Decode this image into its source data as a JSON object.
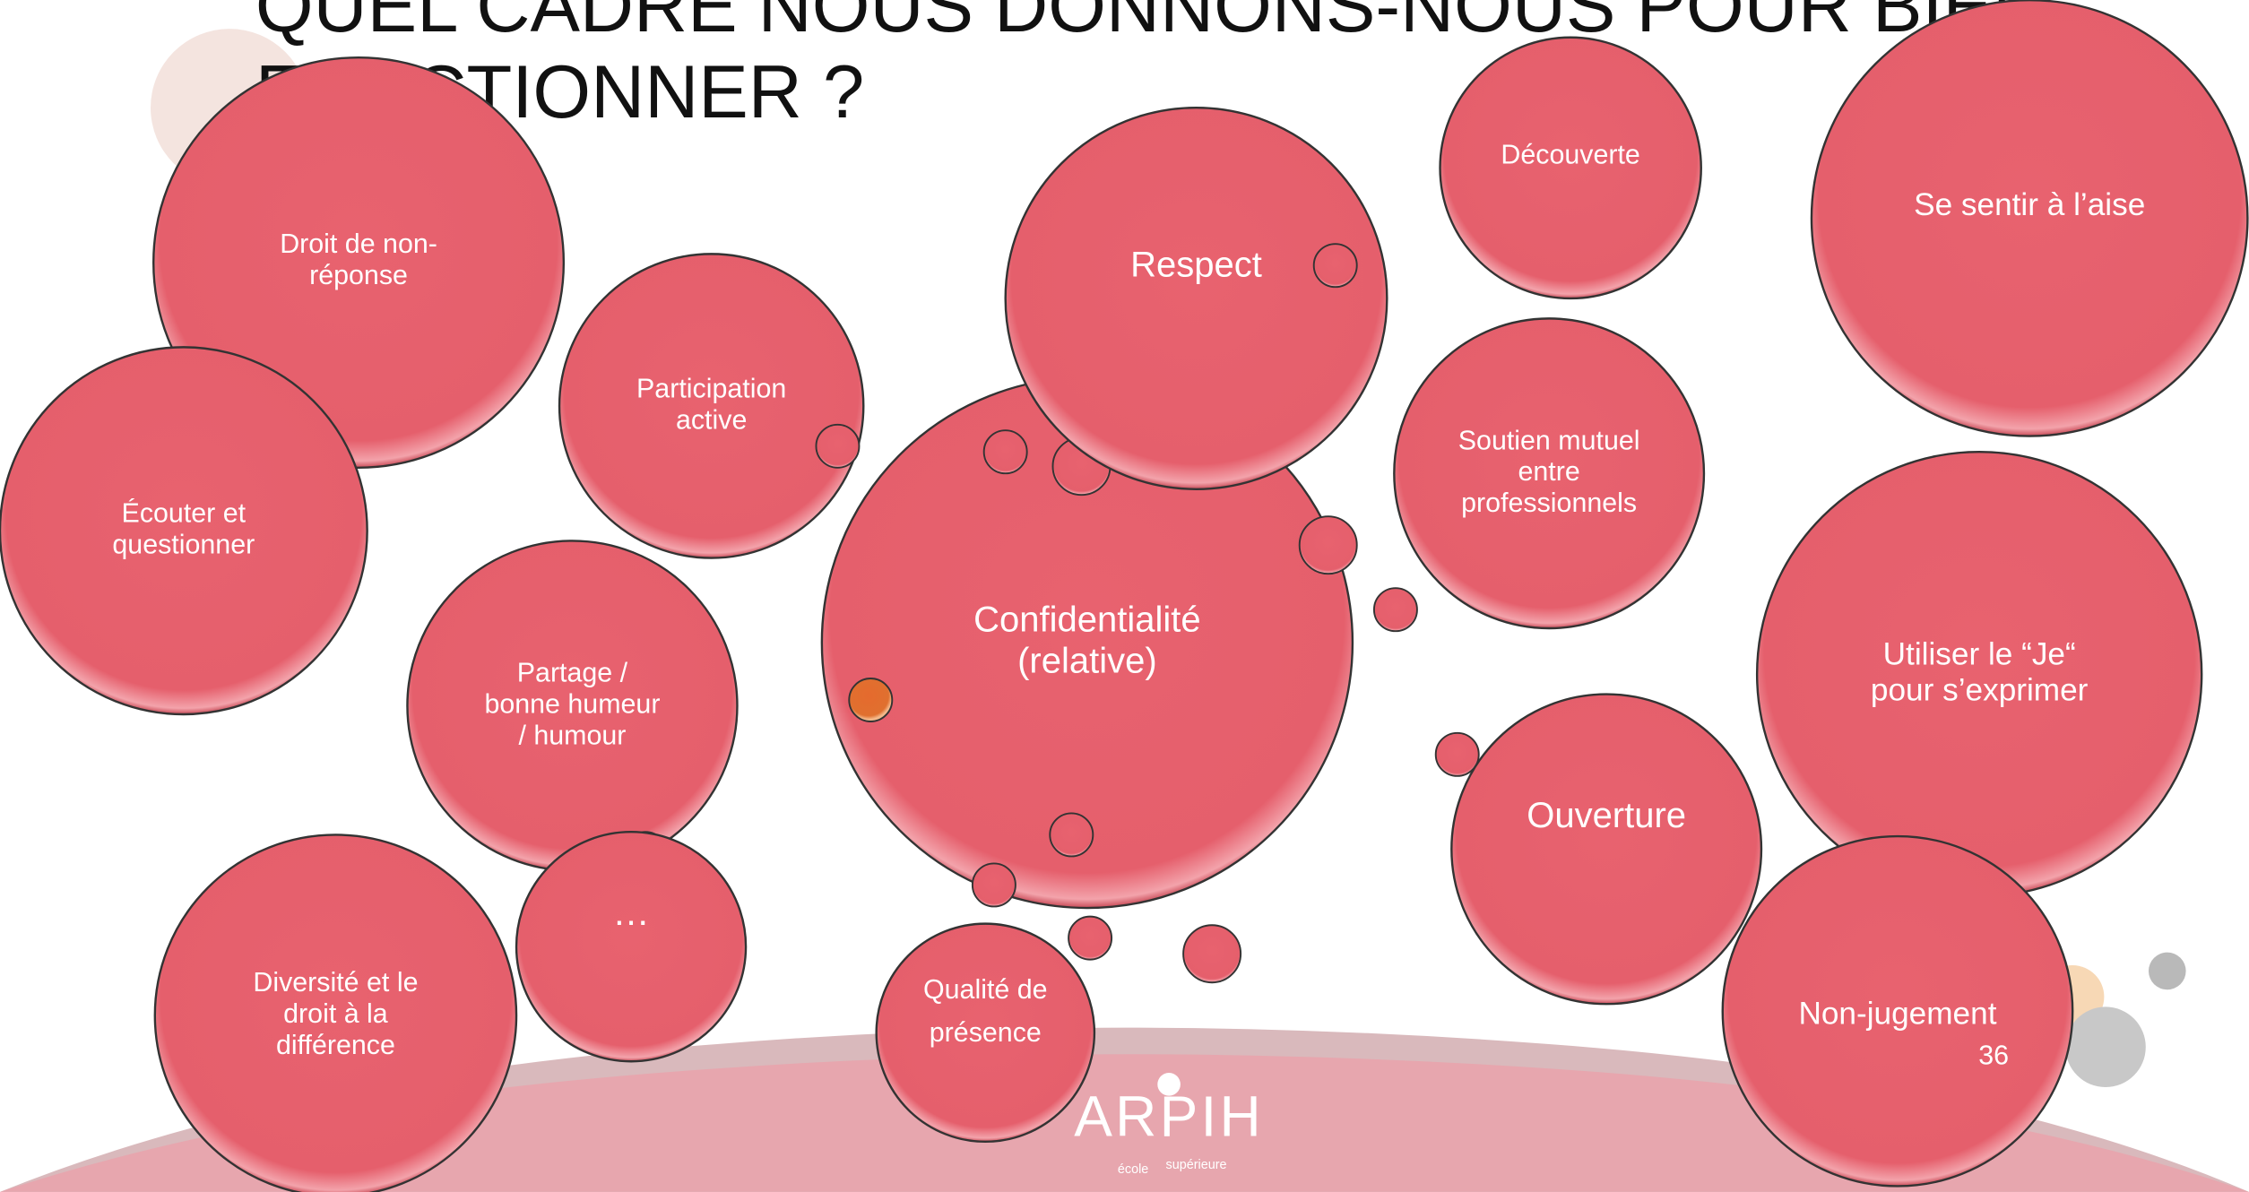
{
  "title": [
    "QUEL CADRE NOUS DONNONS-NOUS POUR BIEN",
    "FONCTIONNER ?"
  ],
  "bubbles": [
    {
      "lines": [
        "Droit de non-",
        "réponse"
      ]
    },
    {
      "lines": [
        "Écouter et",
        "questionner"
      ]
    },
    {
      "lines": [
        "Participation",
        "active"
      ]
    },
    {
      "lines": [
        "Partage /",
        "bonne humeur",
        "/ humour"
      ]
    },
    {
      "lines": [
        "…"
      ]
    },
    {
      "lines": [
        "Diversité et le",
        "droit à la",
        "différence"
      ]
    },
    {
      "lines": [
        "Confidentialité",
        "(relative)"
      ]
    },
    {
      "lines": [
        "Respect"
      ]
    },
    {
      "lines": [
        "Qualité de",
        "présence"
      ]
    },
    {
      "lines": [
        "Découverte"
      ]
    },
    {
      "lines": [
        "Soutien mutuel",
        "entre",
        "professionnels"
      ]
    },
    {
      "lines": [
        "Ouverture"
      ]
    },
    {
      "lines": [
        "Se sentir à l’aise"
      ]
    },
    {
      "lines": [
        "Utiliser le “Je“",
        "pour s’exprimer"
      ]
    },
    {
      "lines": [
        "Non-jugement"
      ]
    }
  ],
  "page_number": "36",
  "logo": {
    "name": "ARPIH",
    "sub1": "école",
    "sub2": "supérieure"
  }
}
